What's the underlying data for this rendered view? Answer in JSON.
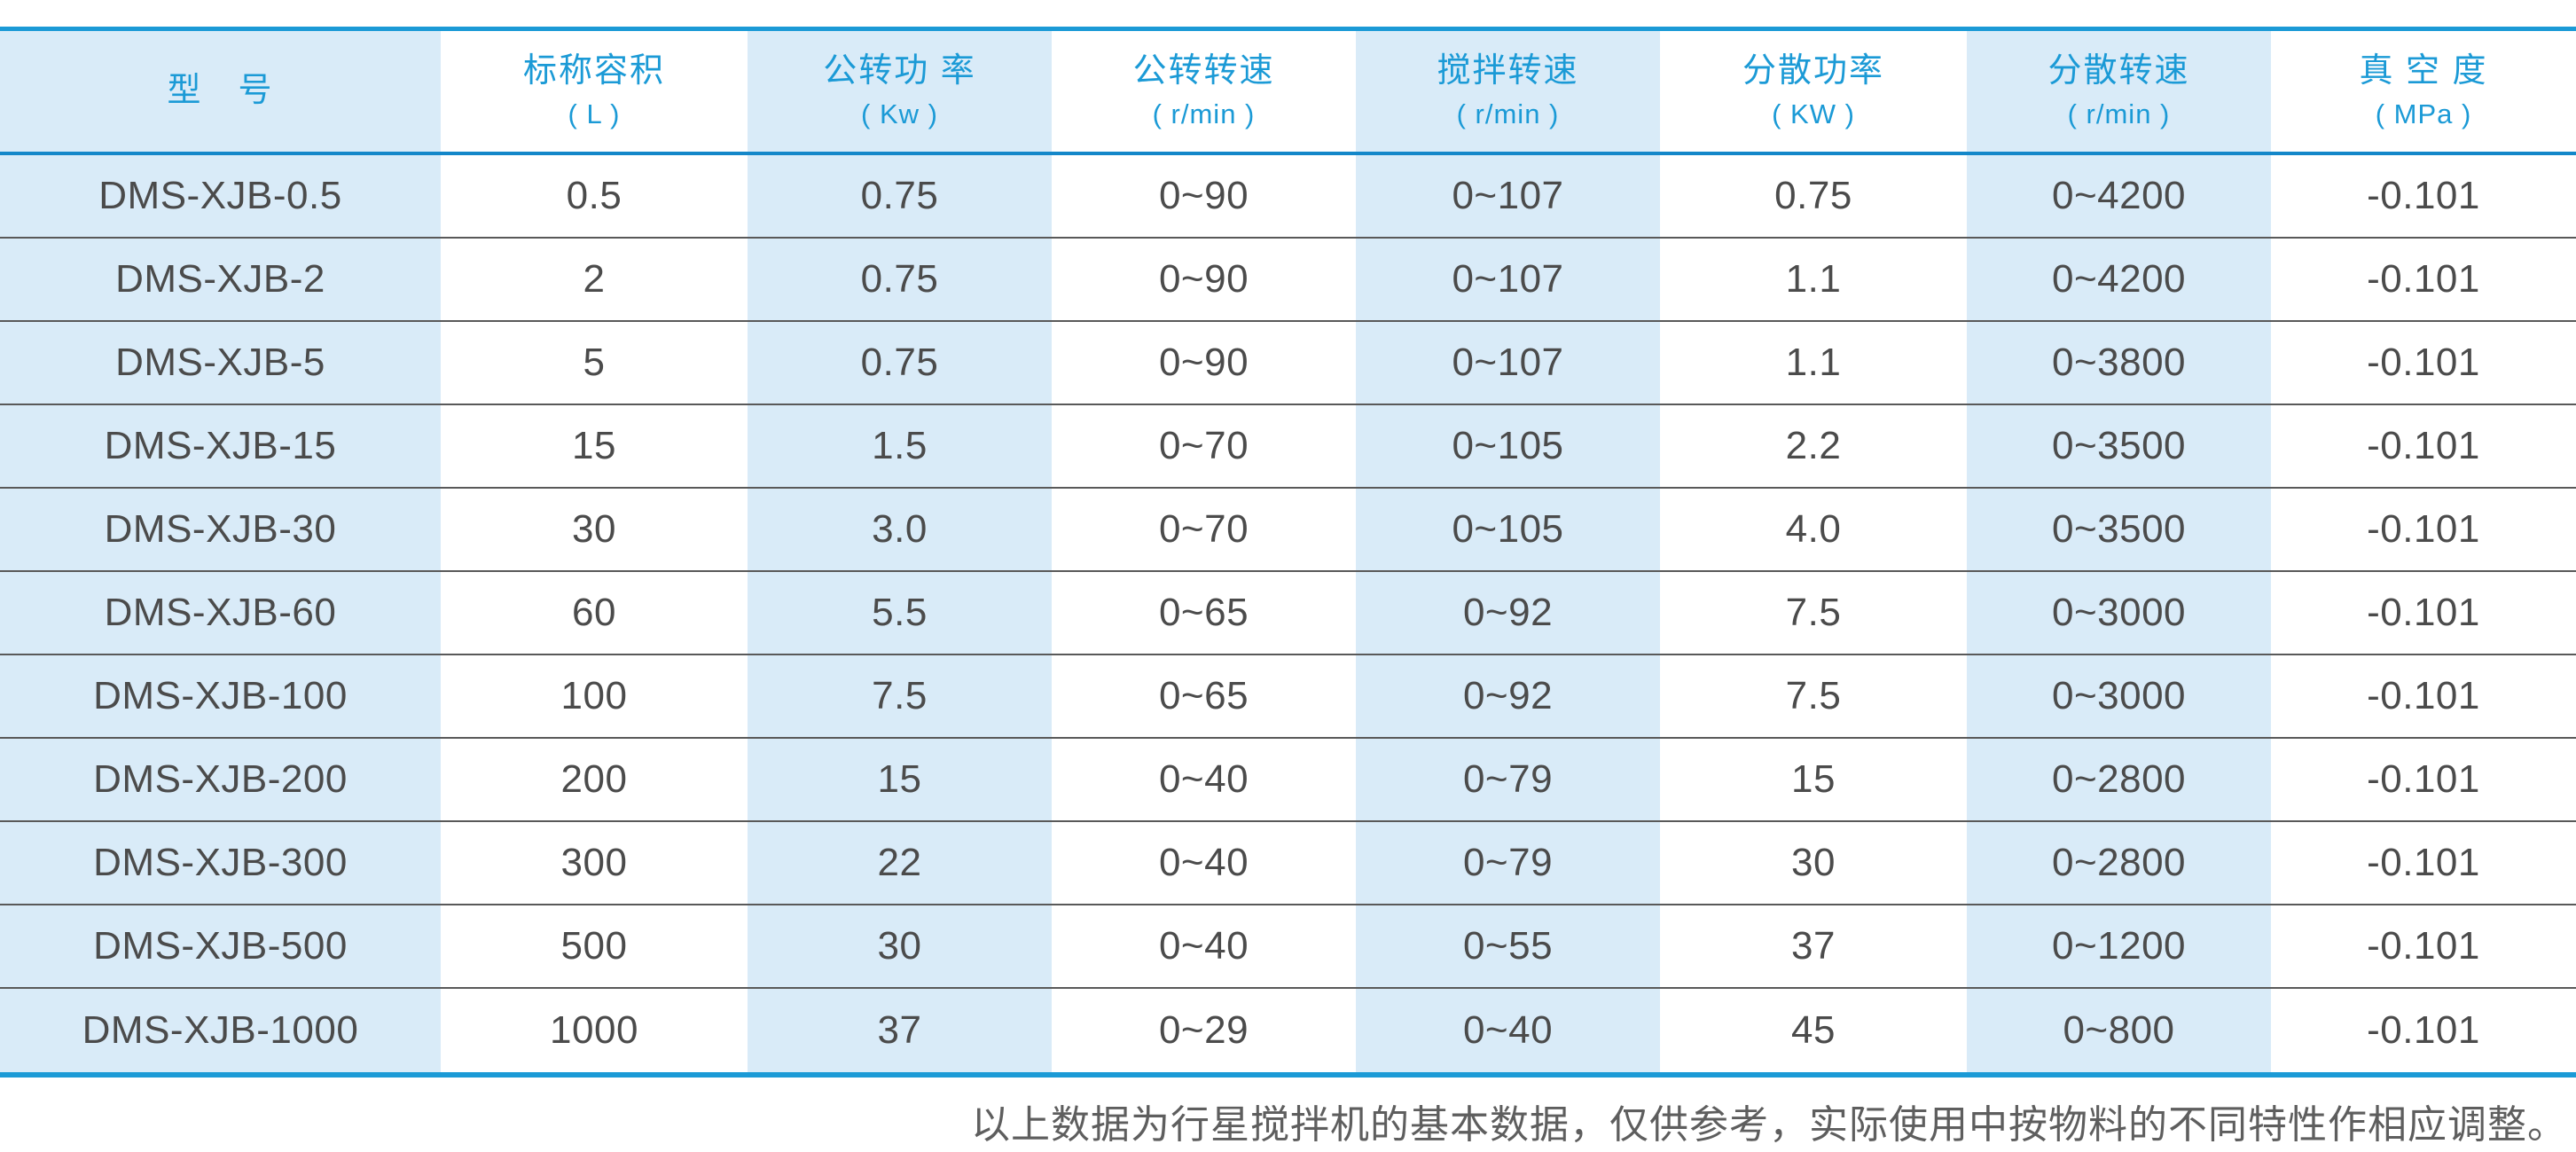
{
  "table": {
    "columns": [
      {
        "key": "model",
        "title": "型　号",
        "unit": ""
      },
      {
        "key": "capacity",
        "title": "标称容积",
        "unit": "( L )"
      },
      {
        "key": "revolution-power",
        "title": "公转功 率",
        "unit": "( Kw )"
      },
      {
        "key": "revolution-speed",
        "title": "公转转速",
        "unit": "( r/min )"
      },
      {
        "key": "stirring-speed",
        "title": "搅拌转速",
        "unit": "( r/min )"
      },
      {
        "key": "dispersion-power",
        "title": "分散功率",
        "unit": "( KW )"
      },
      {
        "key": "dispersion-speed",
        "title": "分散转速",
        "unit": "( r/min )"
      },
      {
        "key": "vacuum",
        "title": "真 空 度",
        "unit": "( MPa )"
      }
    ],
    "rows": [
      [
        "DMS-XJB-0.5",
        "0.5",
        "0.75",
        "0~90",
        "0~107",
        "0.75",
        "0~4200",
        "-0.101"
      ],
      [
        "DMS-XJB-2",
        "2",
        "0.75",
        "0~90",
        "0~107",
        "1.1",
        "0~4200",
        "-0.101"
      ],
      [
        "DMS-XJB-5",
        "5",
        "0.75",
        "0~90",
        "0~107",
        "1.1",
        "0~3800",
        "-0.101"
      ],
      [
        "DMS-XJB-15",
        "15",
        "1.5",
        "0~70",
        "0~105",
        "2.2",
        "0~3500",
        "-0.101"
      ],
      [
        "DMS-XJB-30",
        "30",
        "3.0",
        "0~70",
        "0~105",
        "4.0",
        "0~3500",
        "-0.101"
      ],
      [
        "DMS-XJB-60",
        "60",
        "5.5",
        "0~65",
        "0~92",
        "7.5",
        "0~3000",
        "-0.101"
      ],
      [
        "DMS-XJB-100",
        "100",
        "7.5",
        "0~65",
        "0~92",
        "7.5",
        "0~3000",
        "-0.101"
      ],
      [
        "DMS-XJB-200",
        "200",
        "15",
        "0~40",
        "0~79",
        "15",
        "0~2800",
        "-0.101"
      ],
      [
        "DMS-XJB-300",
        "300",
        "22",
        "0~40",
        "0~79",
        "30",
        "0~2800",
        "-0.101"
      ],
      [
        "DMS-XJB-500",
        "500",
        "30",
        "0~40",
        "0~55",
        "37",
        "0~1200",
        "-0.101"
      ],
      [
        "DMS-XJB-1000",
        "1000",
        "37",
        "0~29",
        "0~40",
        "45",
        "0~800",
        "-0.101"
      ]
    ]
  },
  "footer": {
    "note": "以上数据为行星搅拌机的基本数据，仅供参考，实际使用中按物料的不同特性作相应调整。"
  },
  "colors": {
    "accent_blue": "#1b9ad6",
    "header_underline_blue": "#1487c9",
    "column_stripe_blue": "#d9ebf8",
    "row_separator_gray": "#595959",
    "data_text_gray": "#4b4b4b",
    "footer_text_gray": "#5e5e5e"
  }
}
